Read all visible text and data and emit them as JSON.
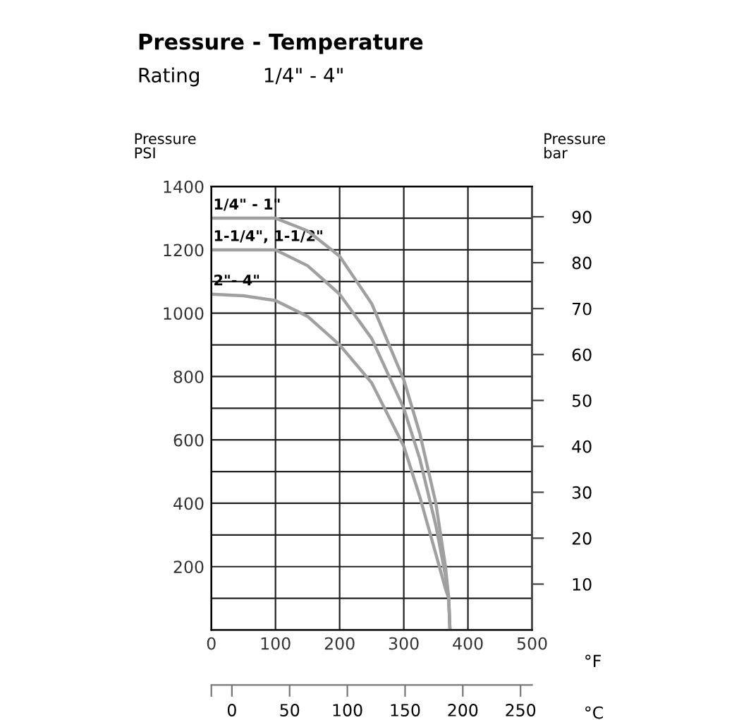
{
  "chart_data": {
    "type": "line",
    "title": "Pressure - Temperature",
    "subtitle": "Rating          1/4\" - 4\"",
    "ylabel": "Pressure\nPSI",
    "y2label": "Pressure\nbar",
    "xlabel": "°F",
    "x2label": "°C",
    "xlim": [
      0,
      500
    ],
    "xticks": [
      0,
      100,
      200,
      300,
      400,
      500
    ],
    "ylim": [
      0,
      1400
    ],
    "yticks": [
      {
        "value": 0,
        "label": null
      },
      {
        "value": 100,
        "label": null
      },
      200,
      {
        "value": 300,
        "label": null
      },
      400,
      {
        "value": 500,
        "label": null
      },
      600,
      {
        "value": 700,
        "label": null
      },
      800,
      {
        "value": 900,
        "label": null
      },
      1000,
      {
        "value": 1100,
        "label": null
      },
      1200,
      {
        "value": 1300,
        "label": null
      },
      1400
    ],
    "y2lim": [
      0,
      96.6
    ],
    "y2ticks": [
      10,
      20,
      30,
      40,
      50,
      60,
      70,
      80,
      90
    ],
    "x2lim": [
      -17.8,
      260
    ],
    "x2ticks": [
      {
        "value": -17.8,
        "label": null
      },
      0,
      50,
      100,
      150,
      200,
      250
    ],
    "grid": true,
    "marker": "none",
    "line_style": "solid",
    "series": [
      {
        "name": "1/4\" - 1\"",
        "color": "#a0a0a0",
        "x": [
          0,
          100,
          150,
          200,
          250,
          300,
          325,
          350,
          365,
          370,
          372
        ],
        "values": [
          1300,
          1300,
          1260,
          1180,
          1030,
          790,
          620,
          400,
          200,
          100,
          0
        ]
      },
      {
        "name": "1-1/4\", 1-1/2\"",
        "color": "#a0a0a0",
        "x": [
          0,
          100,
          150,
          200,
          250,
          300,
          325,
          350,
          365,
          370,
          372
        ],
        "values": [
          1200,
          1200,
          1150,
          1060,
          920,
          700,
          540,
          330,
          170,
          100,
          0
        ]
      },
      {
        "name": "2\"- 4\"",
        "color": "#a0a0a0",
        "x": [
          0,
          50,
          100,
          150,
          200,
          250,
          300,
          325,
          350,
          365,
          370,
          372
        ],
        "values": [
          1060,
          1055,
          1040,
          990,
          900,
          780,
          580,
          420,
          240,
          130,
          100,
          0
        ]
      }
    ]
  }
}
